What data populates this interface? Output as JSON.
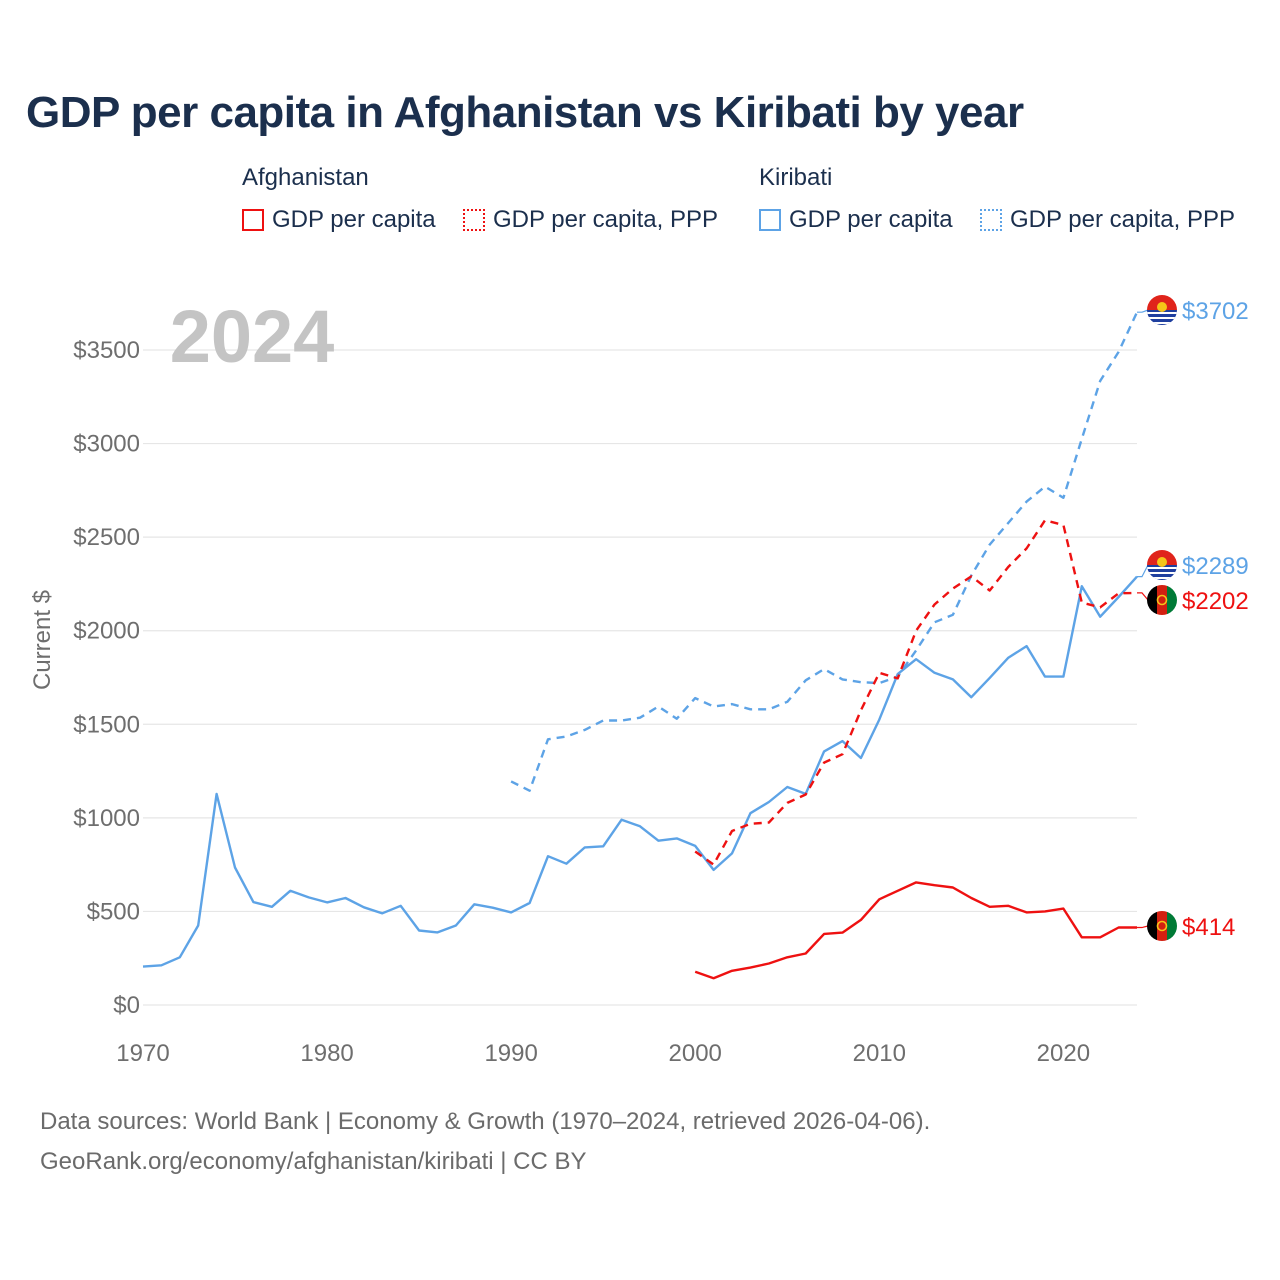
{
  "title": "GDP per capita in Afghanistan vs Kiribati by year",
  "legend": {
    "groups": [
      {
        "country": "Afghanistan",
        "items": [
          "GDP per capita",
          "GDP per capita, PPP"
        ]
      },
      {
        "country": "Kiribati",
        "items": [
          "GDP per capita",
          "GDP per capita, PPP"
        ]
      }
    ]
  },
  "colors": {
    "afghanistan": "#ee1111",
    "kiribati": "#5da3e6"
  },
  "footer": {
    "line1": "Data sources: World Bank | Economy & Growth (1970–2024, retrieved 2026-04-06).",
    "line2": "GeoRank.org/economy/afghanistan/kiribati | CC BY"
  },
  "chart_data": {
    "type": "line",
    "year_label": "2024",
    "ylabel": "Current $",
    "xlim": [
      1970,
      2024
    ],
    "ylim": [
      0,
      3900
    ],
    "y_ticks": [
      0,
      500,
      1000,
      1500,
      2000,
      2500,
      3000,
      3500
    ],
    "y_tick_labels": [
      "$0",
      "$500",
      "$1000",
      "$1500",
      "$2000",
      "$2500",
      "$3000",
      "$3500"
    ],
    "x_ticks": [
      1970,
      1980,
      1990,
      2000,
      2010,
      2020
    ],
    "x_tick_labels": [
      "1970",
      "1980",
      "1990",
      "2000",
      "2010",
      "2020"
    ],
    "series": [
      {
        "name": "Kiribati GDP per capita",
        "country": "kiribati",
        "dash": "solid",
        "end_label": "$2289",
        "end_value": 2289,
        "points": [
          [
            1970,
            205
          ],
          [
            1971,
            212
          ],
          [
            1972,
            255
          ],
          [
            1973,
            425
          ],
          [
            1974,
            1128
          ],
          [
            1975,
            735
          ],
          [
            1976,
            550
          ],
          [
            1977,
            525
          ],
          [
            1978,
            610
          ],
          [
            1979,
            575
          ],
          [
            1980,
            548
          ],
          [
            1981,
            572
          ],
          [
            1982,
            522
          ],
          [
            1983,
            490
          ],
          [
            1984,
            530
          ],
          [
            1985,
            398
          ],
          [
            1986,
            388
          ],
          [
            1987,
            425
          ],
          [
            1988,
            538
          ],
          [
            1989,
            520
          ],
          [
            1990,
            495
          ],
          [
            1991,
            545
          ],
          [
            1992,
            795
          ],
          [
            1993,
            755
          ],
          [
            1994,
            842
          ],
          [
            1995,
            848
          ],
          [
            1996,
            990
          ],
          [
            1997,
            955
          ],
          [
            1998,
            878
          ],
          [
            1999,
            890
          ],
          [
            2000,
            850
          ],
          [
            2001,
            722
          ],
          [
            2002,
            810
          ],
          [
            2003,
            1025
          ],
          [
            2004,
            1085
          ],
          [
            2005,
            1165
          ],
          [
            2006,
            1128
          ],
          [
            2007,
            1355
          ],
          [
            2008,
            1410
          ],
          [
            2009,
            1320
          ],
          [
            2010,
            1525
          ],
          [
            2011,
            1768
          ],
          [
            2012,
            1848
          ],
          [
            2013,
            1775
          ],
          [
            2014,
            1740
          ],
          [
            2015,
            1645
          ],
          [
            2016,
            1748
          ],
          [
            2017,
            1855
          ],
          [
            2018,
            1918
          ],
          [
            2019,
            1755
          ],
          [
            2020,
            1755
          ],
          [
            2021,
            2238
          ],
          [
            2022,
            2075
          ],
          [
            2023,
            2180
          ],
          [
            2024,
            2289
          ]
        ]
      },
      {
        "name": "Kiribati GDP per capita, PPP",
        "country": "kiribati",
        "dash": "dashed",
        "end_label": "$3702",
        "end_value": 3702,
        "points": [
          [
            1990,
            1195
          ],
          [
            1991,
            1145
          ],
          [
            1992,
            1420
          ],
          [
            1993,
            1435
          ],
          [
            1994,
            1470
          ],
          [
            1995,
            1520
          ],
          [
            1996,
            1520
          ],
          [
            1997,
            1535
          ],
          [
            1998,
            1595
          ],
          [
            1999,
            1530
          ],
          [
            2000,
            1640
          ],
          [
            2001,
            1595
          ],
          [
            2002,
            1608
          ],
          [
            2003,
            1580
          ],
          [
            2004,
            1580
          ],
          [
            2005,
            1620
          ],
          [
            2006,
            1735
          ],
          [
            2007,
            1795
          ],
          [
            2008,
            1740
          ],
          [
            2009,
            1725
          ],
          [
            2010,
            1720
          ],
          [
            2011,
            1755
          ],
          [
            2012,
            1895
          ],
          [
            2013,
            2045
          ],
          [
            2014,
            2085
          ],
          [
            2015,
            2295
          ],
          [
            2016,
            2460
          ],
          [
            2017,
            2575
          ],
          [
            2018,
            2690
          ],
          [
            2019,
            2770
          ],
          [
            2020,
            2710
          ],
          [
            2021,
            3025
          ],
          [
            2022,
            3335
          ],
          [
            2023,
            3490
          ],
          [
            2024,
            3702
          ]
        ]
      },
      {
        "name": "Afghanistan GDP per capita, PPP",
        "country": "afghanistan",
        "dash": "dashed",
        "end_label": "$2202",
        "end_value": 2202,
        "points": [
          [
            2000,
            820
          ],
          [
            2001,
            750
          ],
          [
            2002,
            930
          ],
          [
            2003,
            968
          ],
          [
            2004,
            975
          ],
          [
            2005,
            1080
          ],
          [
            2006,
            1125
          ],
          [
            2007,
            1295
          ],
          [
            2008,
            1340
          ],
          [
            2009,
            1575
          ],
          [
            2010,
            1775
          ],
          [
            2011,
            1745
          ],
          [
            2012,
            2000
          ],
          [
            2013,
            2140
          ],
          [
            2014,
            2225
          ],
          [
            2015,
            2290
          ],
          [
            2016,
            2215
          ],
          [
            2017,
            2340
          ],
          [
            2018,
            2440
          ],
          [
            2019,
            2590
          ],
          [
            2020,
            2565
          ],
          [
            2021,
            2150
          ],
          [
            2022,
            2125
          ],
          [
            2023,
            2200
          ],
          [
            2024,
            2202
          ]
        ]
      },
      {
        "name": "Afghanistan GDP per capita",
        "country": "afghanistan",
        "dash": "solid",
        "end_label": "$414",
        "end_value": 414,
        "points": [
          [
            2000,
            178
          ],
          [
            2001,
            143
          ],
          [
            2002,
            183
          ],
          [
            2003,
            200
          ],
          [
            2004,
            222
          ],
          [
            2005,
            255
          ],
          [
            2006,
            275
          ],
          [
            2007,
            380
          ],
          [
            2008,
            387
          ],
          [
            2009,
            455
          ],
          [
            2010,
            565
          ],
          [
            2011,
            610
          ],
          [
            2012,
            655
          ],
          [
            2013,
            640
          ],
          [
            2014,
            628
          ],
          [
            2015,
            572
          ],
          [
            2016,
            525
          ],
          [
            2017,
            530
          ],
          [
            2018,
            495
          ],
          [
            2019,
            500
          ],
          [
            2020,
            515
          ],
          [
            2021,
            362
          ],
          [
            2022,
            362
          ],
          [
            2023,
            414
          ],
          [
            2024,
            414
          ]
        ]
      }
    ]
  }
}
